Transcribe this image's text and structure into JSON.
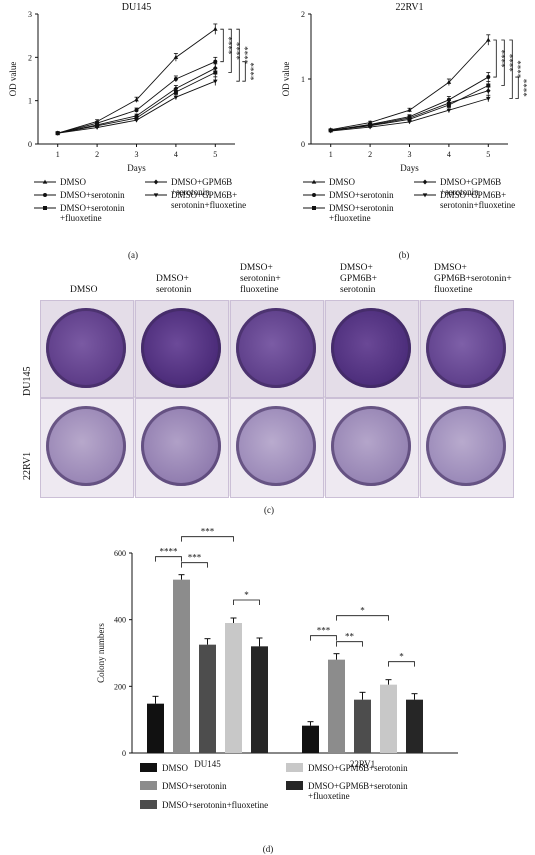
{
  "panels": {
    "a": "(a)",
    "b": "(b)",
    "c": "(c)",
    "d": "(d)"
  },
  "line_legend": {
    "col1": [
      "DMSO",
      "DMSO+serotonin",
      "DMSO+serotonin\n+fluoxetine"
    ],
    "col2": [
      "DMSO+GPM6B\n+serotonin",
      "DMSO+GPM6B+\nserotonin+fluoxetine"
    ]
  },
  "line_legend_b_col2": [
    "DMSO+GPM6B\n+serotonin",
    "DMSO+GPM6B+\nserotonin+fluoxetine"
  ],
  "photo": {
    "column_labels": [
      "DMSO",
      "DMSO+\nserotonin",
      "DMSO+\nserotonin+\nfluoxetine",
      "DMSO+\nGPM6B+\nserotonin",
      "DMSO+\nGPM6B+serotonin+\nfluoxetine"
    ],
    "row_labels": [
      "DU145",
      "22RV1"
    ],
    "colors": {
      "stain": "#5b3a86",
      "plate": "#e9e2ee"
    }
  },
  "bar_legend": [
    "DMSO",
    "DMSO+serotonin",
    "DMSO+serotonin+fluoxetine",
    "DMSO+GPM6B+serotonin",
    "DMSO+GPM6B+serotonin\n+fluoxetine"
  ],
  "chart_data": [
    {
      "type": "line",
      "title": "DU145",
      "xlabel": "Days",
      "ylabel": "OD value",
      "x": [
        1,
        2,
        3,
        4,
        5
      ],
      "xlim": [
        0.5,
        5.5
      ],
      "ylim": [
        0,
        3
      ],
      "yticks": [
        0,
        1,
        2,
        3
      ],
      "series": [
        {
          "name": "DMSO",
          "values": [
            0.25,
            0.52,
            1.02,
            2.0,
            2.65
          ],
          "err": [
            0.02,
            0.04,
            0.06,
            0.09,
            0.12
          ]
        },
        {
          "name": "DMSO+serotonin",
          "values": [
            0.25,
            0.48,
            0.78,
            1.5,
            1.9
          ],
          "err": [
            0.02,
            0.04,
            0.05,
            0.07,
            0.1
          ]
        },
        {
          "name": "DMSO+serotonin+fluoxetine",
          "values": [
            0.25,
            0.42,
            0.6,
            1.2,
            1.65
          ],
          "err": [
            0.02,
            0.03,
            0.04,
            0.07,
            0.1
          ]
        },
        {
          "name": "DMSO+GPM6B+serotonin",
          "values": [
            0.25,
            0.44,
            0.65,
            1.28,
            1.75
          ],
          "err": [
            0.02,
            0.03,
            0.04,
            0.07,
            0.1
          ]
        },
        {
          "name": "DMSO+GPM6B+serotonin+fluoxetine",
          "values": [
            0.25,
            0.38,
            0.55,
            1.08,
            1.45
          ],
          "err": [
            0.02,
            0.03,
            0.04,
            0.06,
            0.1
          ]
        }
      ],
      "significance": [
        "****",
        "****",
        "****",
        "****"
      ]
    },
    {
      "type": "line",
      "title": "22RV1",
      "xlabel": "Days",
      "ylabel": "OD value",
      "x": [
        1,
        2,
        3,
        4,
        5
      ],
      "xlim": [
        0.5,
        5.5
      ],
      "ylim": [
        0,
        2
      ],
      "yticks": [
        0,
        1,
        2
      ],
      "series": [
        {
          "name": "DMSO",
          "values": [
            0.22,
            0.33,
            0.52,
            0.95,
            1.6
          ],
          "err": [
            0.01,
            0.02,
            0.03,
            0.05,
            0.08
          ]
        },
        {
          "name": "DMSO+serotonin",
          "values": [
            0.21,
            0.3,
            0.42,
            0.68,
            1.03
          ],
          "err": [
            0.01,
            0.02,
            0.03,
            0.05,
            0.07
          ]
        },
        {
          "name": "DMSO+serotonin+fluoxetine",
          "values": [
            0.21,
            0.28,
            0.38,
            0.6,
            0.9
          ],
          "err": [
            0.01,
            0.02,
            0.03,
            0.04,
            0.06
          ]
        },
        {
          "name": "DMSO+GPM6B+serotonin",
          "values": [
            0.21,
            0.29,
            0.4,
            0.63,
            0.82
          ],
          "err": [
            0.01,
            0.02,
            0.03,
            0.04,
            0.06
          ]
        },
        {
          "name": "DMSO+GPM6B+serotonin+fluoxetine",
          "values": [
            0.2,
            0.26,
            0.34,
            0.52,
            0.7
          ],
          "err": [
            0.01,
            0.02,
            0.02,
            0.04,
            0.05
          ]
        }
      ],
      "significance": [
        "****",
        "****",
        "****",
        "****"
      ]
    },
    {
      "type": "bar",
      "ylabel": "Colony numbers",
      "categories": [
        "DU145",
        "22RV1"
      ],
      "ylim": [
        0,
        600
      ],
      "yticks": [
        0,
        200,
        400,
        600
      ],
      "series": [
        {
          "name": "DMSO",
          "values": [
            148,
            82
          ],
          "err": [
            22,
            12
          ],
          "color": "#111111"
        },
        {
          "name": "DMSO+serotonin",
          "values": [
            520,
            280
          ],
          "err": [
            15,
            18
          ],
          "color": "#8c8c8c"
        },
        {
          "name": "DMSO+serotonin+fluoxetine",
          "values": [
            325,
            160
          ],
          "err": [
            18,
            22
          ],
          "color": "#4d4d4d"
        },
        {
          "name": "DMSO+GPM6B+serotonin",
          "values": [
            390,
            205
          ],
          "err": [
            15,
            15
          ],
          "color": "#c8c8c8"
        },
        {
          "name": "DMSO+GPM6B+serotonin+fluoxetine",
          "values": [
            320,
            160
          ],
          "err": [
            25,
            18
          ],
          "color": "#262626"
        }
      ],
      "significance": [
        {
          "group": 0,
          "from": 0,
          "to": 1,
          "label": "****"
        },
        {
          "group": 0,
          "from": 1,
          "to": 2,
          "label": "***"
        },
        {
          "group": 0,
          "from": 1,
          "to": 3,
          "label": "***"
        },
        {
          "group": 0,
          "from": 3,
          "to": 4,
          "label": "*"
        },
        {
          "group": 1,
          "from": 0,
          "to": 1,
          "label": "***"
        },
        {
          "group": 1,
          "from": 1,
          "to": 2,
          "label": "**"
        },
        {
          "group": 1,
          "from": 1,
          "to": 3,
          "label": "*"
        },
        {
          "group": 1,
          "from": 3,
          "to": 4,
          "label": "*"
        }
      ]
    }
  ]
}
